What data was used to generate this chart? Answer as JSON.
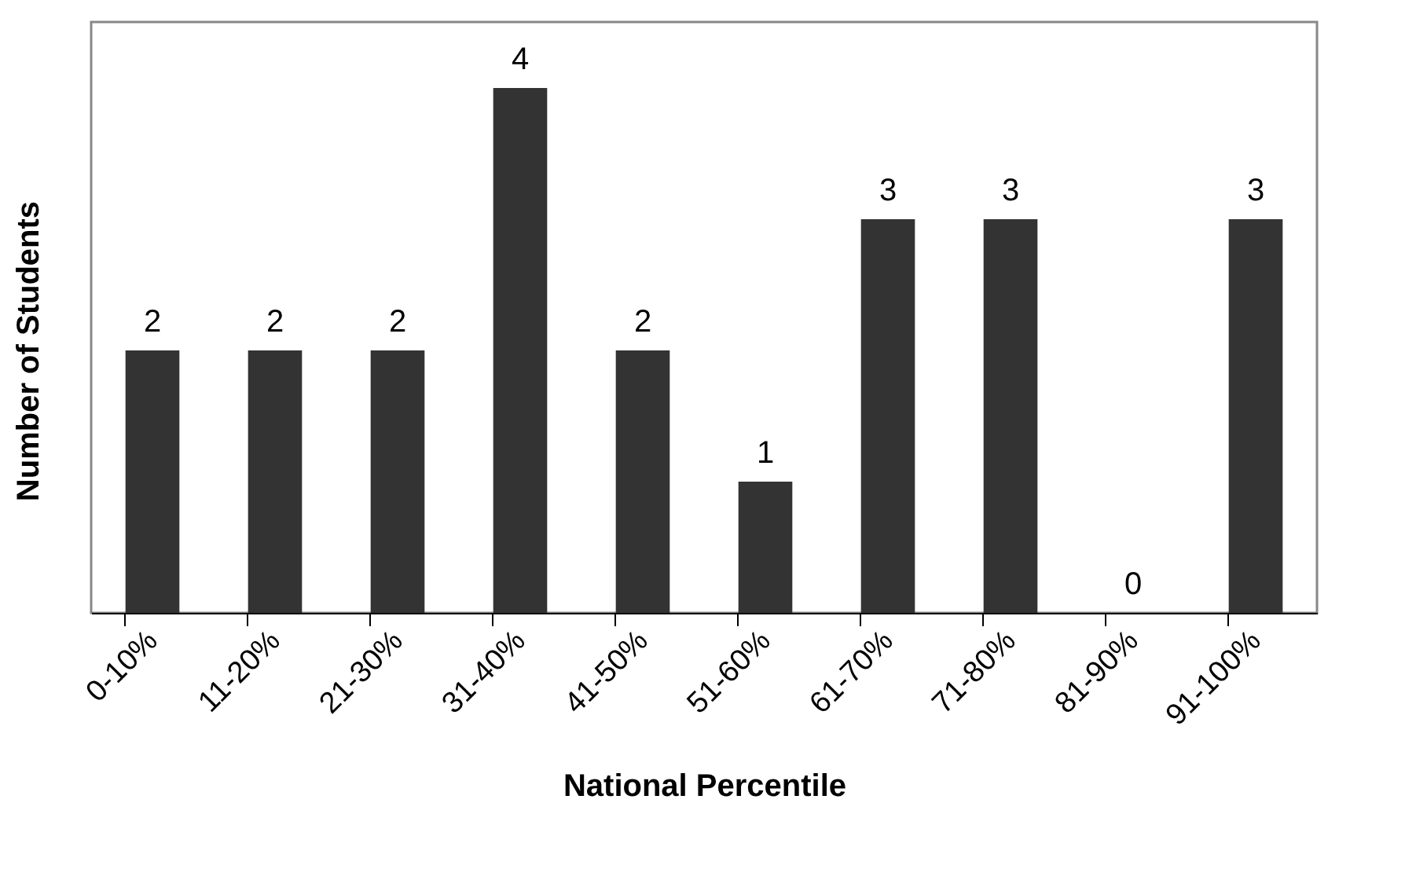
{
  "chart_data": {
    "type": "bar",
    "xlabel": "National Percentile",
    "ylabel": "Number of Students",
    "categories": [
      "0-10%",
      "11-20%",
      "21-30%",
      "31-40%",
      "41-50%",
      "51-60%",
      "61-70%",
      "71-80%",
      "81-90%",
      "91-100%"
    ],
    "values": [
      2,
      2,
      2,
      4,
      2,
      1,
      3,
      3,
      0,
      3
    ],
    "color": "#333333",
    "data_labels": true
  }
}
